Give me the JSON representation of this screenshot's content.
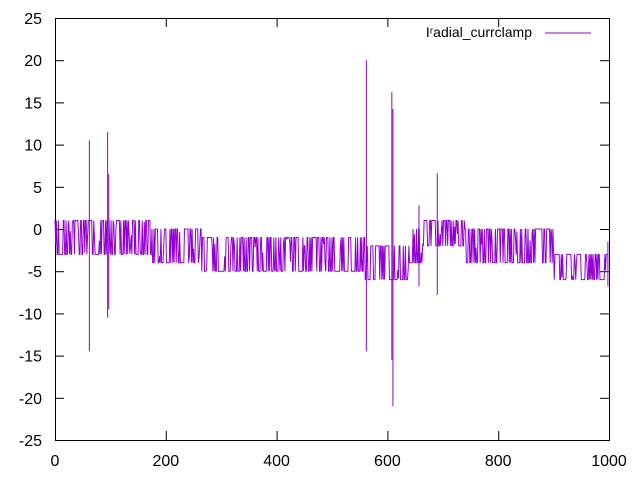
{
  "chart_data": {
    "type": "line",
    "title": "",
    "xlabel": "",
    "ylabel": "",
    "xlim": [
      0,
      1000
    ],
    "ylim": [
      -25,
      25
    ],
    "x_ticks": [
      0,
      200,
      400,
      600,
      800,
      1000
    ],
    "y_ticks": [
      -25,
      -20,
      -15,
      -10,
      -5,
      0,
      5,
      10,
      15,
      20,
      25
    ],
    "grid": false,
    "legend_position": "top-right",
    "series": [
      {
        "name": "Iʳadial_currclamp",
        "color": "#9400d3",
        "noise_bands": [
          {
            "x_start": 0,
            "x_end": 175,
            "low": -3,
            "high": 1
          },
          {
            "x_start": 175,
            "x_end": 265,
            "low": -4,
            "high": 0
          },
          {
            "x_start": 265,
            "x_end": 560,
            "low": -5,
            "high": -1
          },
          {
            "x_start": 560,
            "x_end": 640,
            "low": -6,
            "high": -2
          },
          {
            "x_start": 640,
            "x_end": 665,
            "low": -4,
            "high": 0
          },
          {
            "x_start": 665,
            "x_end": 740,
            "low": -2,
            "high": 1
          },
          {
            "x_start": 740,
            "x_end": 900,
            "low": -4,
            "high": 0
          },
          {
            "x_start": 900,
            "x_end": 1000,
            "low": -6,
            "high": -3
          }
        ],
        "spikes": [
          {
            "x": 62,
            "high": 10.5,
            "low": -14.5
          },
          {
            "x": 95,
            "high": 11.5,
            "low": -10.5
          },
          {
            "x": 97,
            "high": 6.5,
            "low": -9.5
          },
          {
            "x": 562,
            "high": 20,
            "low": -14.5
          },
          {
            "x": 608,
            "high": 16.2,
            "low": -15.5
          },
          {
            "x": 610,
            "high": 14.2,
            "low": -21
          },
          {
            "x": 657,
            "high": 2.8,
            "low": -6.8
          },
          {
            "x": 690,
            "high": 6.6,
            "low": -7.8
          },
          {
            "x": 998,
            "high": -1.5,
            "low": -6.8
          }
        ]
      }
    ]
  }
}
